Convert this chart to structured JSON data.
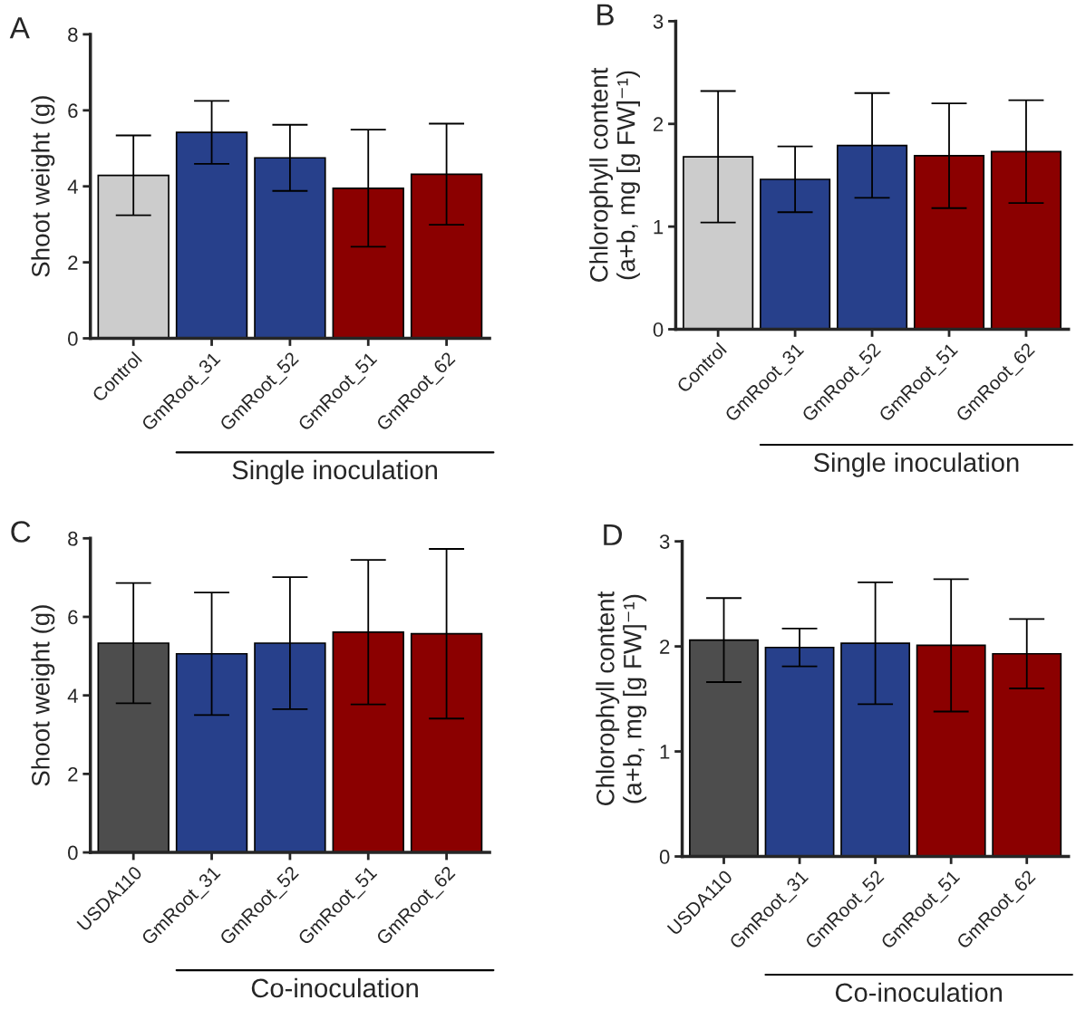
{
  "chart_data": [
    {
      "type": "bar",
      "title": "A",
      "ylabel": "Shoot weight (g)",
      "categories": [
        "Control",
        "GmRoot_31",
        "GmRoot_52",
        "GmRoot_51",
        "GmRoot_62"
      ],
      "values": [
        4.29,
        5.42,
        4.75,
        3.95,
        4.32
      ],
      "errors": [
        1.05,
        0.83,
        0.87,
        1.54,
        1.33
      ],
      "colors": [
        "#cccccc",
        "#27408b",
        "#27408b",
        "#8b0000",
        "#8b0000"
      ],
      "ylim": [
        0,
        8
      ],
      "yticks": [
        0,
        2,
        4,
        6,
        8
      ],
      "annotations": [
        "Single inoculation"
      ]
    },
    {
      "type": "bar",
      "title": "B",
      "ylabel": "Chlorophyll content\n(a+b, mg [g FW]⁻¹)",
      "categories": [
        "Control",
        "GmRoot_31",
        "GmRoot_52",
        "GmRoot_51",
        "GmRoot_62"
      ],
      "values": [
        1.68,
        1.46,
        1.79,
        1.69,
        1.73
      ],
      "errors": [
        0.64,
        0.32,
        0.51,
        0.51,
        0.5
      ],
      "colors": [
        "#cccccc",
        "#27408b",
        "#27408b",
        "#8b0000",
        "#8b0000"
      ],
      "ylim": [
        0,
        3
      ],
      "yticks": [
        0,
        1,
        2,
        3
      ],
      "annotations": [
        "Single inoculation"
      ]
    },
    {
      "type": "bar",
      "title": "C",
      "ylabel": "Shoot weight (g)",
      "categories": [
        "USDA110",
        "GmRoot_31",
        "GmRoot_52",
        "GmRoot_51",
        "GmRoot_62"
      ],
      "values": [
        5.33,
        5.06,
        5.33,
        5.61,
        5.57
      ],
      "errors": [
        1.53,
        1.56,
        1.68,
        1.84,
        2.16
      ],
      "colors": [
        "#4d4d4d",
        "#27408b",
        "#27408b",
        "#8b0000",
        "#8b0000"
      ],
      "ylim": [
        0,
        8
      ],
      "yticks": [
        0,
        2,
        4,
        6,
        8
      ],
      "annotations": [
        "Co-inoculation"
      ]
    },
    {
      "type": "bar",
      "title": "D",
      "ylabel": "Chlorophyll content\n(a+b, mg [g FW]⁻¹)",
      "categories": [
        "USDA110",
        "GmRoot_31",
        "GmRoot_52",
        "GmRoot_51",
        "GmRoot_62"
      ],
      "values": [
        2.06,
        1.99,
        2.03,
        2.01,
        1.93
      ],
      "errors": [
        0.4,
        0.18,
        0.58,
        0.63,
        0.33
      ],
      "colors": [
        "#4d4d4d",
        "#27408b",
        "#27408b",
        "#8b0000",
        "#8b0000"
      ],
      "ylim": [
        0,
        3
      ],
      "yticks": [
        0,
        1,
        2,
        3
      ],
      "annotations": [
        "Co-inoculation"
      ]
    }
  ]
}
